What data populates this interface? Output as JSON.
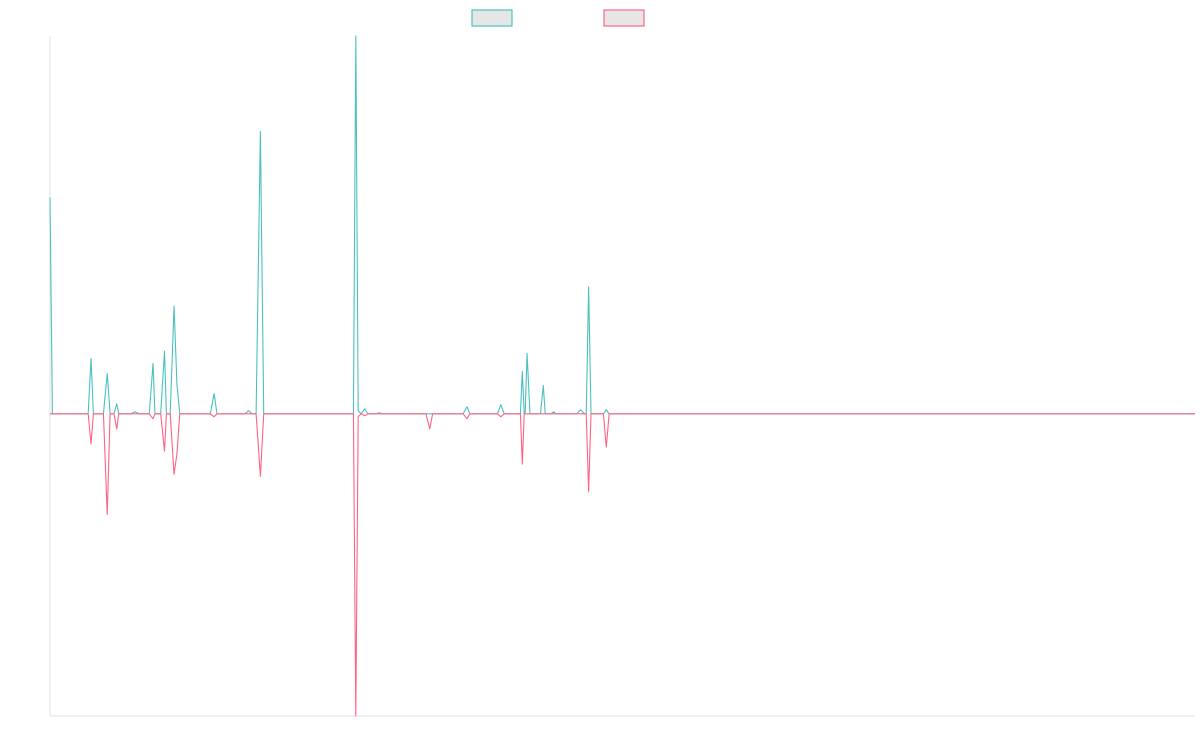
{
  "chart_data": {
    "type": "line",
    "title": "",
    "xlabel": "",
    "ylabel": "",
    "x_range": [
      0,
      1200
    ],
    "ylim": [
      -300,
      375
    ],
    "grid": false,
    "legend_position": "top-center",
    "series": [
      {
        "color": "#4bc0c0",
        "legend_fill": "#e6e6e6",
        "points": [
          [
            0,
            215
          ],
          [
            2.5,
            0
          ],
          [
            40,
            0
          ],
          [
            43,
            55
          ],
          [
            45.5,
            0
          ],
          [
            56,
            0
          ],
          [
            60,
            40
          ],
          [
            63,
            0
          ],
          [
            67,
            0
          ],
          [
            70,
            10
          ],
          [
            72,
            0
          ],
          [
            85,
            0
          ],
          [
            89,
            2
          ],
          [
            93,
            0
          ],
          [
            104,
            0
          ],
          [
            108,
            50
          ],
          [
            110,
            0
          ],
          [
            116,
            0
          ],
          [
            120,
            62
          ],
          [
            122,
            0
          ],
          [
            126,
            0
          ],
          [
            130,
            107
          ],
          [
            133,
            30
          ],
          [
            136,
            0
          ],
          [
            168,
            0
          ],
          [
            172,
            20
          ],
          [
            175,
            0
          ],
          [
            204,
            0
          ],
          [
            208,
            3
          ],
          [
            212,
            0
          ],
          [
            216,
            0
          ],
          [
            220.5,
            280
          ],
          [
            224,
            0
          ],
          [
            318,
            0
          ],
          [
            320.5,
            375
          ],
          [
            323,
            3
          ],
          [
            326,
            0
          ],
          [
            330,
            5
          ],
          [
            333,
            0
          ],
          [
            342,
            0
          ],
          [
            345,
            1
          ],
          [
            348,
            0
          ],
          [
            433,
            0
          ],
          [
            437,
            7
          ],
          [
            440,
            0
          ],
          [
            469,
            0
          ],
          [
            472.5,
            9
          ],
          [
            476,
            0
          ],
          [
            493,
            0
          ],
          [
            495,
            42
          ],
          [
            497,
            0
          ],
          [
            498,
            0
          ],
          [
            500,
            60
          ],
          [
            503,
            0
          ],
          [
            514,
            0
          ],
          [
            517,
            28
          ],
          [
            519,
            0
          ],
          [
            525,
            0
          ],
          [
            528,
            2
          ],
          [
            530,
            0
          ],
          [
            552,
            0
          ],
          [
            556,
            4
          ],
          [
            560,
            0
          ],
          [
            562,
            0
          ],
          [
            564.5,
            126
          ],
          [
            567,
            0
          ],
          [
            580,
            0
          ],
          [
            583,
            4
          ],
          [
            586,
            0
          ],
          [
            1200,
            0
          ]
        ]
      },
      {
        "color": "#ff6384",
        "legend_fill": "#e6e6e6",
        "points": [
          [
            0,
            0
          ],
          [
            40,
            0
          ],
          [
            43,
            -30
          ],
          [
            45.5,
            0
          ],
          [
            56,
            0
          ],
          [
            60,
            -100
          ],
          [
            63,
            0
          ],
          [
            67,
            0
          ],
          [
            70,
            -15
          ],
          [
            72,
            0
          ],
          [
            104,
            0
          ],
          [
            108,
            -5
          ],
          [
            110,
            0
          ],
          [
            116,
            0
          ],
          [
            120,
            -37
          ],
          [
            122,
            0
          ],
          [
            126,
            0
          ],
          [
            130,
            -60
          ],
          [
            133,
            -40
          ],
          [
            136,
            0
          ],
          [
            168,
            0
          ],
          [
            172,
            -3
          ],
          [
            175,
            0
          ],
          [
            216,
            0
          ],
          [
            220.5,
            -62
          ],
          [
            224,
            0
          ],
          [
            318,
            0
          ],
          [
            320.5,
            -300
          ],
          [
            323,
            -3
          ],
          [
            326,
            0
          ],
          [
            330,
            -2
          ],
          [
            333,
            0
          ],
          [
            394,
            0
          ],
          [
            398,
            -15
          ],
          [
            401,
            0
          ],
          [
            433,
            0
          ],
          [
            437,
            -5
          ],
          [
            440,
            0
          ],
          [
            469,
            0
          ],
          [
            472.5,
            -3
          ],
          [
            476,
            0
          ],
          [
            493,
            0
          ],
          [
            495,
            -50
          ],
          [
            497,
            0
          ],
          [
            562,
            0
          ],
          [
            564.5,
            -77
          ],
          [
            567,
            0
          ],
          [
            580,
            0
          ],
          [
            583,
            -33
          ],
          [
            586,
            0
          ],
          [
            1200,
            0
          ]
        ]
      }
    ]
  }
}
